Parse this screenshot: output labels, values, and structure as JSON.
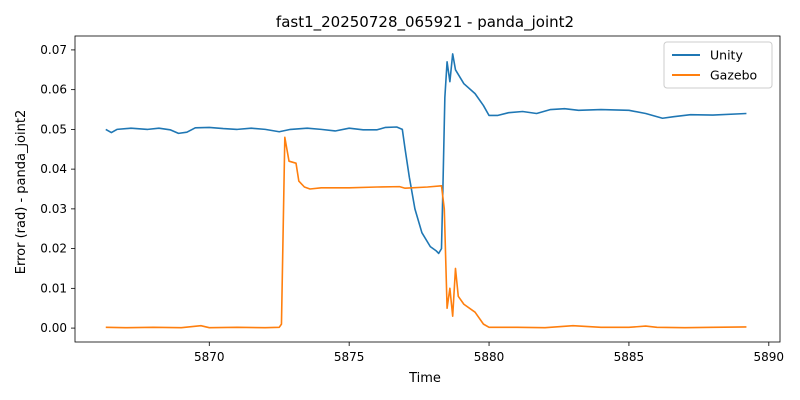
{
  "chart_data": {
    "type": "line",
    "title": "fast1_20250728_065921 - panda_joint2",
    "xlabel": "Time",
    "ylabel": "Error (rad) - panda_joint2",
    "xlim": [
      5865.2,
      5890.4
    ],
    "ylim": [
      -0.0035,
      0.0735
    ],
    "xticks": [
      5870,
      5875,
      5880,
      5885,
      5890
    ],
    "yticks": [
      0.0,
      0.01,
      0.02,
      0.03,
      0.04,
      0.05,
      0.06,
      0.07
    ],
    "xtick_labels": [
      "5870",
      "5875",
      "5880",
      "5885",
      "5890"
    ],
    "ytick_labels": [
      "0.00",
      "0.01",
      "0.02",
      "0.03",
      "0.04",
      "0.05",
      "0.06",
      "0.07"
    ],
    "grid": false,
    "legend_position": "top-right",
    "series": [
      {
        "name": "Unity",
        "color": "#1f77b4",
        "points": [
          [
            5866.3,
            0.05
          ],
          [
            5866.5,
            0.0492
          ],
          [
            5866.7,
            0.05
          ],
          [
            5867.2,
            0.0503
          ],
          [
            5867.8,
            0.05
          ],
          [
            5868.2,
            0.0503
          ],
          [
            5868.6,
            0.0499
          ],
          [
            5868.9,
            0.049
          ],
          [
            5869.2,
            0.0493
          ],
          [
            5869.5,
            0.0504
          ],
          [
            5870.0,
            0.0505
          ],
          [
            5870.5,
            0.0502
          ],
          [
            5871.0,
            0.05
          ],
          [
            5871.5,
            0.0503
          ],
          [
            5872.0,
            0.05
          ],
          [
            5872.5,
            0.0494
          ],
          [
            5872.9,
            0.05
          ],
          [
            5873.5,
            0.0503
          ],
          [
            5874.0,
            0.05
          ],
          [
            5874.5,
            0.0496
          ],
          [
            5875.0,
            0.0503
          ],
          [
            5875.5,
            0.0499
          ],
          [
            5876.0,
            0.0499
          ],
          [
            5876.3,
            0.0505
          ],
          [
            5876.7,
            0.0506
          ],
          [
            5876.9,
            0.05
          ],
          [
            5877.0,
            0.045
          ],
          [
            5877.15,
            0.038
          ],
          [
            5877.35,
            0.03
          ],
          [
            5877.6,
            0.024
          ],
          [
            5877.9,
            0.0205
          ],
          [
            5878.1,
            0.0195
          ],
          [
            5878.2,
            0.0188
          ],
          [
            5878.3,
            0.02
          ],
          [
            5878.35,
            0.035
          ],
          [
            5878.42,
            0.058
          ],
          [
            5878.5,
            0.067
          ],
          [
            5878.6,
            0.062
          ],
          [
            5878.7,
            0.069
          ],
          [
            5878.8,
            0.065
          ],
          [
            5879.1,
            0.0615
          ],
          [
            5879.5,
            0.059
          ],
          [
            5879.8,
            0.056
          ],
          [
            5880.0,
            0.0535
          ],
          [
            5880.3,
            0.0535
          ],
          [
            5880.7,
            0.0542
          ],
          [
            5881.2,
            0.0545
          ],
          [
            5881.7,
            0.054
          ],
          [
            5882.2,
            0.055
          ],
          [
            5882.7,
            0.0552
          ],
          [
            5883.2,
            0.0548
          ],
          [
            5884.0,
            0.055
          ],
          [
            5885.0,
            0.0548
          ],
          [
            5885.6,
            0.054
          ],
          [
            5886.2,
            0.0528
          ],
          [
            5886.6,
            0.0532
          ],
          [
            5887.2,
            0.0537
          ],
          [
            5888.0,
            0.0536
          ],
          [
            5889.2,
            0.054
          ]
        ]
      },
      {
        "name": "Gazebo",
        "color": "#ff7f0e",
        "points": [
          [
            5866.3,
            0.0002
          ],
          [
            5867.0,
            0.0001
          ],
          [
            5868.0,
            0.0002
          ],
          [
            5869.0,
            0.0001
          ],
          [
            5869.7,
            0.0006
          ],
          [
            5870.0,
            0.0001
          ],
          [
            5871.0,
            0.0002
          ],
          [
            5872.0,
            0.0001
          ],
          [
            5872.5,
            0.0002
          ],
          [
            5872.58,
            0.001
          ],
          [
            5872.7,
            0.048
          ],
          [
            5872.85,
            0.042
          ],
          [
            5873.1,
            0.0415
          ],
          [
            5873.2,
            0.037
          ],
          [
            5873.4,
            0.0355
          ],
          [
            5873.6,
            0.035
          ],
          [
            5874.0,
            0.0353
          ],
          [
            5875.0,
            0.0353
          ],
          [
            5876.0,
            0.0355
          ],
          [
            5876.8,
            0.0356
          ],
          [
            5877.0,
            0.0352
          ],
          [
            5877.8,
            0.0355
          ],
          [
            5878.3,
            0.0358
          ],
          [
            5878.4,
            0.03
          ],
          [
            5878.5,
            0.005
          ],
          [
            5878.6,
            0.01
          ],
          [
            5878.7,
            0.003
          ],
          [
            5878.8,
            0.015
          ],
          [
            5878.9,
            0.008
          ],
          [
            5879.1,
            0.006
          ],
          [
            5879.5,
            0.004
          ],
          [
            5879.8,
            0.001
          ],
          [
            5880.0,
            0.0002
          ],
          [
            5881.0,
            0.0002
          ],
          [
            5882.0,
            0.0001
          ],
          [
            5883.0,
            0.0006
          ],
          [
            5884.0,
            0.0002
          ],
          [
            5885.0,
            0.0002
          ],
          [
            5885.6,
            0.0005
          ],
          [
            5886.0,
            0.0002
          ],
          [
            5887.0,
            0.0001
          ],
          [
            5888.0,
            0.0002
          ],
          [
            5889.2,
            0.0003
          ]
        ]
      }
    ]
  }
}
